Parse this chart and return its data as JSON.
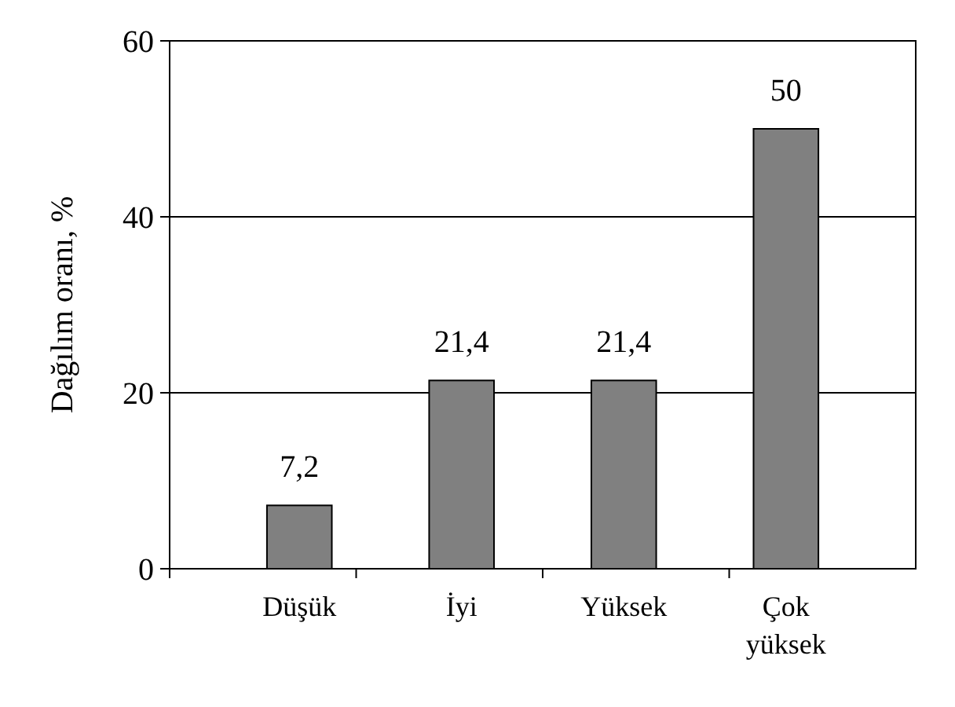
{
  "chart_data": {
    "type": "bar",
    "ylabel": "Dağılım oranı, %",
    "categories": [
      "Düşük",
      "İyi",
      "Yüksek",
      "Çok yüksek"
    ],
    "values": [
      7.2,
      21.4,
      21.4,
      50
    ],
    "value_labels": [
      "7,2",
      "21,4",
      "21,4",
      "50"
    ],
    "color": "#808080",
    "ylim": [
      0,
      60
    ],
    "yticks": [
      0,
      20,
      40,
      60
    ],
    "grid": "y"
  }
}
